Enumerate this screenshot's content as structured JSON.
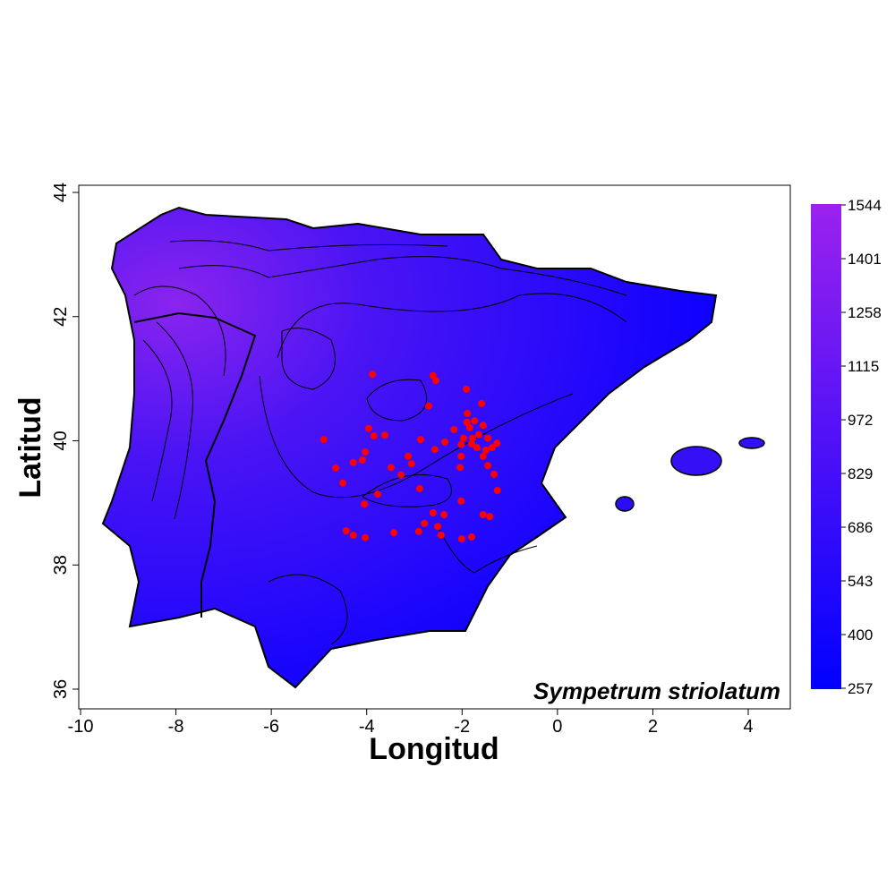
{
  "chart_data": {
    "type": "scatter",
    "title": "Sympetrum striolatum",
    "xlabel": "Longitud",
    "ylabel": "Latitud",
    "xlim": [
      -10,
      4
    ],
    "ylim": [
      36,
      44
    ],
    "xticks": [
      "-10",
      "-8",
      "-6",
      "-4",
      "-2",
      "0",
      "2",
      "4"
    ],
    "yticks": [
      "36",
      "38",
      "40",
      "42",
      "44"
    ],
    "point_color": "#ff0000",
    "background_field": {
      "type": "contour-heatmap",
      "colorbar_ticks": [
        "1544",
        "1401",
        "1258",
        "1115",
        "972",
        "829",
        "686",
        "543",
        "400",
        "257"
      ],
      "range": [
        257,
        1544
      ],
      "low_color": "#0000ff",
      "high_color": "#9b22ee"
    },
    "points": [
      [
        -4.9,
        40.02
      ],
      [
        -3.88,
        41.07
      ],
      [
        -4.65,
        39.56
      ],
      [
        -4.5,
        39.32
      ],
      [
        -4.28,
        39.65
      ],
      [
        -4.03,
        39.82
      ],
      [
        -3.96,
        40.2
      ],
      [
        -3.85,
        40.08
      ],
      [
        -3.62,
        40.09
      ],
      [
        -4.09,
        39.69
      ],
      [
        -3.49,
        39.57
      ],
      [
        -3.28,
        39.45
      ],
      [
        -3.77,
        39.14
      ],
      [
        -2.89,
        39.23
      ],
      [
        -3.06,
        39.63
      ],
      [
        -2.87,
        40.02
      ],
      [
        -2.7,
        40.56
      ],
      [
        -2.61,
        41.05
      ],
      [
        -2.55,
        40.97
      ],
      [
        -2.57,
        39.86
      ],
      [
        -2.36,
        39.98
      ],
      [
        -1.91,
        40.83
      ],
      [
        -1.59,
        40.6
      ],
      [
        -2.17,
        40.18
      ],
      [
        -2.02,
        39.94
      ],
      [
        -1.84,
        40.21
      ],
      [
        -1.74,
        40.32
      ],
      [
        -1.89,
        40.44
      ],
      [
        -1.56,
        40.25
      ],
      [
        -1.46,
        40.04
      ],
      [
        -1.37,
        39.89
      ],
      [
        -1.27,
        39.96
      ],
      [
        -1.46,
        39.6
      ],
      [
        -1.33,
        39.46
      ],
      [
        -1.56,
        39.75
      ],
      [
        -1.69,
        39.89
      ],
      [
        -1.78,
        40.04
      ],
      [
        -2.02,
        39.75
      ],
      [
        -2.04,
        39.57
      ],
      [
        -1.97,
        40.04
      ],
      [
        -1.26,
        39.2
      ],
      [
        -4.05,
        38.98
      ],
      [
        -4.43,
        38.55
      ],
      [
        -4.28,
        38.48
      ],
      [
        -4.03,
        38.44
      ],
      [
        -3.43,
        38.52
      ],
      [
        -2.91,
        38.54
      ],
      [
        -2.79,
        38.67
      ],
      [
        -2.61,
        38.84
      ],
      [
        -2.38,
        38.81
      ],
      [
        -2.51,
        38.62
      ],
      [
        -2.44,
        38.48
      ],
      [
        -2.01,
        38.42
      ],
      [
        -1.8,
        38.45
      ],
      [
        -1.56,
        38.81
      ],
      [
        -1.42,
        38.78
      ],
      [
        -2.02,
        39.03
      ],
      [
        -3.13,
        39.75
      ],
      [
        -1.65,
        40.1
      ],
      [
        -1.8,
        39.95
      ],
      [
        -1.5,
        39.85
      ],
      [
        -1.9,
        40.3
      ]
    ]
  }
}
